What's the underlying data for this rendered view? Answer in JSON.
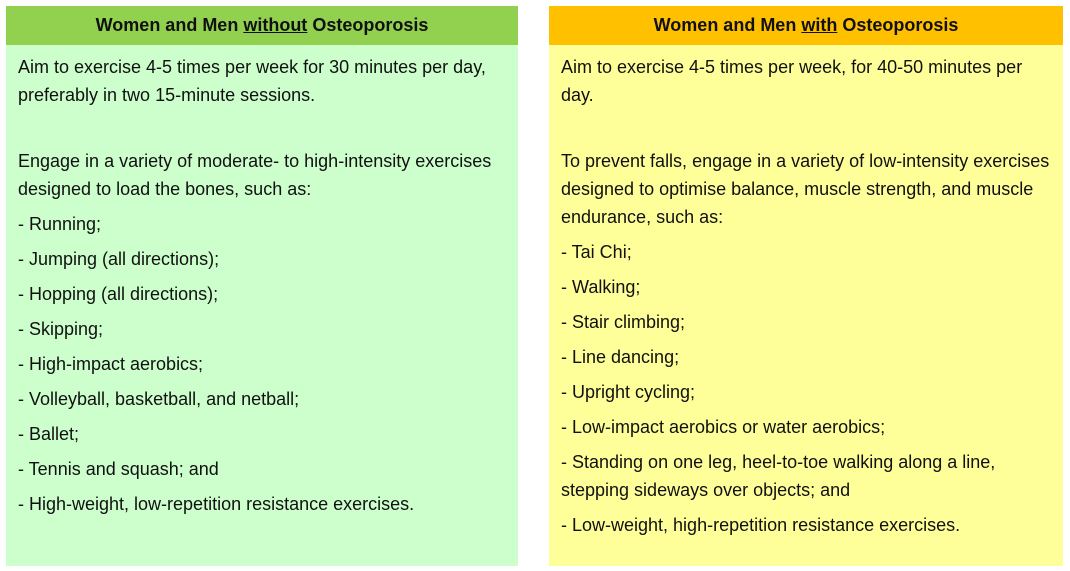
{
  "panels": [
    {
      "title": {
        "before": "Women and Men ",
        "emphasis": "without",
        "after": " Osteoporosis"
      },
      "paragraphs": [
        "Aim to exercise 4-5 times per week for 30 minutes per day, preferably in two 15-minute sessions.",
        "Engage in a variety of moderate- to high-intensity exercises designed to load the bones, such as:"
      ],
      "list": [
        "- Running;",
        "- Jumping (all directions);",
        "- Hopping (all directions);",
        "- Skipping;",
        "- High-impact aerobics;",
        "- Volleyball, basketball, and netball;",
        "- Ballet;",
        "- Tennis and squash; and",
        "- High-weight, low-repetition resistance exercises."
      ]
    },
    {
      "title": {
        "before": "Women and Men ",
        "emphasis": "with",
        "after": " Osteoporosis"
      },
      "paragraphs": [
        "Aim to exercise 4-5 times per week, for 40-50 minutes per day.",
        "To prevent falls, engage in a variety of low-intensity exercises designed to optimise balance, muscle strength, and muscle endurance, such as:"
      ],
      "list": [
        "- Tai Chi;",
        "- Walking;",
        "- Stair climbing;",
        "- Line dancing;",
        "- Upright cycling;",
        "- Low-impact aerobics or water aerobics;",
        "- Standing on one leg, heel-to-toe walking along a line, stepping sideways over objects; and",
        "- Low-weight, high-repetition resistance exercises."
      ]
    }
  ]
}
